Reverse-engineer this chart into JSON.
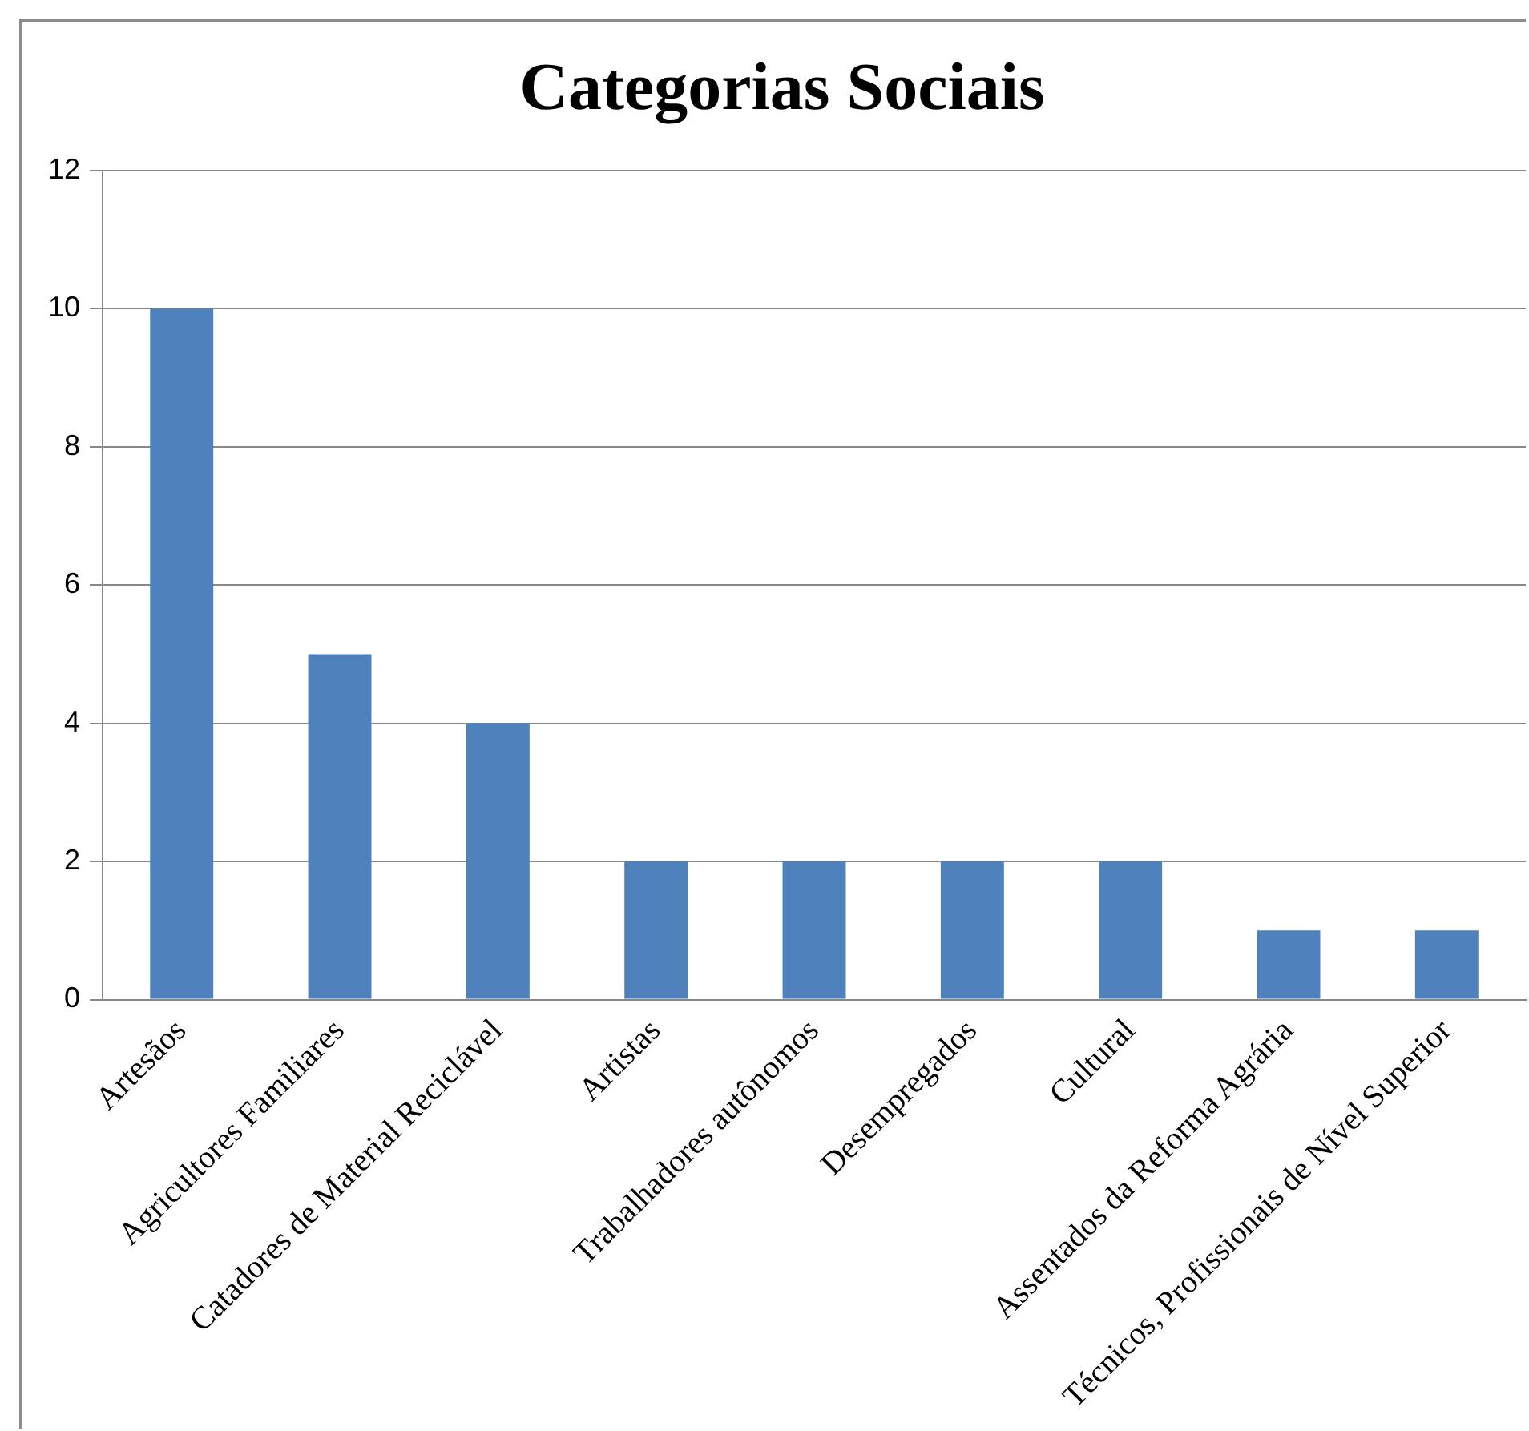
{
  "chart_data": {
    "type": "bar",
    "title": "Categorias Sociais",
    "categories": [
      "Artesãos",
      "Agricultores Familiares",
      "Catadores de Material Reciclável",
      "Artistas",
      "Trabalhadores autônomos",
      "Desempregados",
      "Cultural",
      "Assentados da Reforma Agrária",
      "Técnicos, Profissionais de Nível Superior"
    ],
    "values": [
      10,
      5,
      4,
      2,
      2,
      2,
      2,
      1,
      1
    ],
    "color": "#4f81bd",
    "ylim": [
      0,
      12
    ],
    "yticks": [
      0,
      2,
      4,
      6,
      8,
      10,
      12
    ],
    "grid": "y",
    "legend": false
  }
}
